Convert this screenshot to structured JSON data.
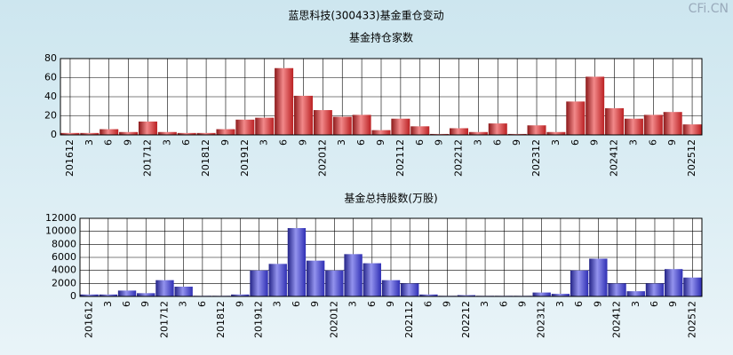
{
  "title": "蓝思科技(300433)基金重仓变动",
  "watermark": "CFi.CN",
  "chart_data": [
    {
      "type": "bar",
      "title": "基金持仓家数",
      "categories": [
        "201612",
        "3",
        "6",
        "9",
        "201712",
        "3",
        "6",
        "201812",
        "9",
        "201912",
        "3",
        "6",
        "9",
        "202012",
        "3",
        "6",
        "9",
        "202112",
        "6",
        "9",
        "202212",
        "3",
        "6",
        "9",
        "202312",
        "3",
        "6",
        "9",
        "202412",
        "3",
        "6",
        "9",
        "202512"
      ],
      "values": [
        2,
        2,
        6,
        3,
        14,
        3,
        2,
        2,
        6,
        16,
        18,
        70,
        41,
        26,
        19,
        21,
        5,
        17,
        9,
        1,
        7,
        3,
        12,
        1,
        10,
        3,
        35,
        61,
        28,
        17,
        21,
        24,
        11
      ],
      "color": "#e8282a",
      "ylim": [
        0,
        80
      ],
      "yticks": [
        0,
        20,
        40,
        60,
        80
      ],
      "grid": true
    },
    {
      "type": "bar",
      "title": "基金总持股数(万股)",
      "categories": [
        "201612",
        "3",
        "6",
        "9",
        "201712",
        "3",
        "6",
        "201812",
        "9",
        "201912",
        "3",
        "6",
        "9",
        "202012",
        "3",
        "6",
        "9",
        "202112",
        "6",
        "9",
        "202212",
        "3",
        "6",
        "9",
        "202312",
        "3",
        "6",
        "9",
        "202412",
        "3",
        "6",
        "9",
        "202512"
      ],
      "values": [
        300,
        300,
        900,
        500,
        2500,
        1500,
        100,
        100,
        300,
        4000,
        5000,
        10500,
        5500,
        4000,
        6500,
        5100,
        2500,
        2000,
        300,
        100,
        200,
        100,
        100,
        100,
        600,
        400,
        4000,
        5800,
        2000,
        800,
        2000,
        4200,
        2900
      ],
      "color": "#3a3ae0",
      "ylim": [
        0,
        12000
      ],
      "yticks": [
        0,
        2000,
        4000,
        6000,
        8000,
        10000,
        12000
      ],
      "grid": true
    }
  ]
}
